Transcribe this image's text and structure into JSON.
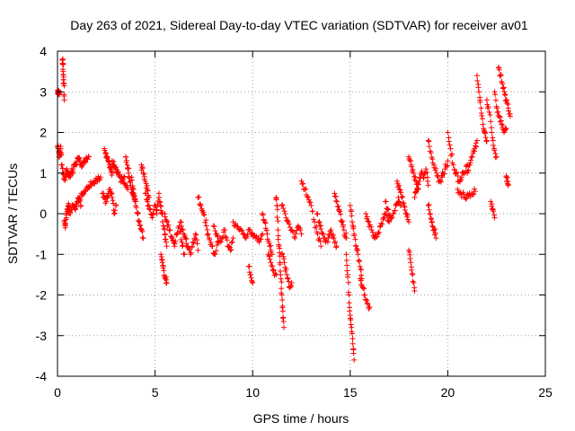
{
  "chart_data": {
    "type": "scatter",
    "title": "Day 263 of 2021, Sidereal Day-to-day VTEC variation (SDTVAR) for receiver av01",
    "xlabel": "GPS time / hours",
    "ylabel": "SDTVAR / TECUs",
    "xlim": [
      0,
      25
    ],
    "ylim": [
      -4,
      4
    ],
    "xticks": [
      0,
      5,
      10,
      15,
      20,
      25
    ],
    "yticks": [
      -4,
      -3,
      -2,
      -1,
      0,
      1,
      2,
      3,
      4
    ],
    "xtick_labels": [
      "0",
      "5",
      "10",
      "15",
      "20",
      "25"
    ],
    "ytick_labels": [
      "-4",
      "-3",
      "-2",
      "-1",
      "0",
      "1",
      "2",
      "3",
      "4"
    ],
    "grid": true,
    "marker": "+",
    "color": "#ff0000",
    "series": [
      {
        "name": "SDTVAR",
        "segments": [
          {
            "x0": 0.0,
            "x1": 0.1,
            "y": [
              3.0,
              3.0,
              2.98,
              3.0
            ]
          },
          {
            "x0": 0.0,
            "x1": 0.2,
            "y": [
              1.65,
              1.6,
              1.5,
              1.4,
              1.55,
              1.6,
              1.45
            ]
          },
          {
            "x0": 0.25,
            "x1": 0.35,
            "y": [
              3.8,
              3.7,
              3.5,
              3.3,
              3.2,
              2.8
            ]
          },
          {
            "x0": 0.2,
            "x1": 0.8,
            "y": [
              1.2,
              1.0,
              0.85,
              0.9,
              1.1,
              1.0,
              0.9,
              0.95,
              1.05,
              1.0
            ]
          },
          {
            "x0": 0.35,
            "x1": 0.6,
            "y": [
              -0.2,
              -0.3,
              -0.1,
              0.1,
              0.2,
              0.15
            ]
          },
          {
            "x0": 0.8,
            "x1": 1.6,
            "y": [
              1.1,
              1.2,
              1.3,
              1.35,
              1.2,
              1.25,
              1.3,
              1.35,
              1.4
            ]
          },
          {
            "x0": 0.6,
            "x1": 1.2,
            "y": [
              0.0,
              0.1,
              0.2,
              0.1,
              0.3,
              0.35,
              0.2
            ]
          },
          {
            "x0": 1.0,
            "x1": 2.2,
            "y": [
              0.3,
              0.4,
              0.5,
              0.55,
              0.6,
              0.7,
              0.75,
              0.8,
              0.85,
              0.9
            ]
          },
          {
            "x0": 2.4,
            "x1": 2.8,
            "y": [
              1.6,
              1.5,
              1.4,
              1.3,
              1.2,
              1.1,
              1.0
            ]
          },
          {
            "x0": 2.3,
            "x1": 3.0,
            "y": [
              0.5,
              0.4,
              0.3,
              0.5,
              0.6,
              0.4,
              0.0,
              0.2
            ]
          },
          {
            "x0": 2.8,
            "x1": 3.6,
            "y": [
              1.3,
              1.2,
              1.1,
              1.0,
              0.9,
              0.8,
              0.9,
              0.7,
              0.6
            ]
          },
          {
            "x0": 3.5,
            "x1": 4.0,
            "y": [
              1.4,
              1.2,
              1.0,
              0.8,
              0.6,
              0.5,
              0.4,
              0.3
            ]
          },
          {
            "x0": 3.8,
            "x1": 4.4,
            "y": [
              0.9,
              0.6,
              0.3,
              0.0,
              -0.2,
              -0.4,
              -0.6
            ]
          },
          {
            "x0": 4.3,
            "x1": 4.7,
            "y": [
              1.2,
              1.0,
              0.8,
              0.6,
              0.4
            ]
          },
          {
            "x0": 4.5,
            "x1": 5.2,
            "y": [
              0.5,
              0.3,
              0.1,
              -0.1,
              0.2,
              0.0,
              0.4
            ]
          },
          {
            "x0": 5.2,
            "x1": 5.6,
            "y": [
              0.5,
              0.2,
              0.0,
              -0.3,
              -0.5,
              -0.8
            ]
          },
          {
            "x0": 5.3,
            "x1": 5.6,
            "y": [
              -1.0,
              -1.2,
              -1.4,
              -1.6,
              -1.7
            ]
          },
          {
            "x0": 5.5,
            "x1": 6.5,
            "y": [
              0.0,
              -0.2,
              -0.4,
              -0.6,
              -0.8,
              -0.5,
              -0.3,
              -0.7,
              -1.0
            ]
          },
          {
            "x0": 6.3,
            "x1": 7.2,
            "y": [
              -0.2,
              -0.4,
              -0.6,
              -0.8,
              -1.0,
              -0.7,
              -0.5,
              -0.9
            ]
          },
          {
            "x0": 7.2,
            "x1": 8.2,
            "y": [
              0.4,
              0.2,
              0.0,
              -0.3,
              -0.6,
              -0.8,
              -1.0,
              -0.7
            ]
          },
          {
            "x0": 8.0,
            "x1": 9.0,
            "y": [
              -0.3,
              -0.5,
              -0.7,
              -0.6,
              -0.4,
              -0.8,
              -0.9,
              -0.6
            ]
          },
          {
            "x0": 9.0,
            "x1": 10.5,
            "y": [
              -0.2,
              -0.3,
              -0.4,
              -0.5,
              -0.6,
              -0.4,
              -0.5,
              -0.6,
              -0.7,
              -0.5
            ]
          },
          {
            "x0": 9.8,
            "x1": 10.0,
            "y": [
              -1.3,
              -1.5,
              -1.7
            ]
          },
          {
            "x0": 10.5,
            "x1": 11.0,
            "y": [
              0.0,
              -0.2,
              -0.5,
              -0.8,
              -1.0
            ]
          },
          {
            "x0": 10.8,
            "x1": 11.2,
            "y": [
              -1.0,
              -1.2,
              -1.4,
              -1.5
            ]
          },
          {
            "x0": 11.2,
            "x1": 11.6,
            "y": [
              0.4,
              0.2,
              -0.4,
              -0.8,
              -1.2,
              -1.6,
              -2.0,
              -2.4,
              -2.8
            ]
          },
          {
            "x0": 11.5,
            "x1": 12.0,
            "y": [
              -1.0,
              -1.2,
              -1.5,
              -1.8,
              -1.7
            ]
          },
          {
            "x0": 11.5,
            "x1": 12.5,
            "y": [
              0.2,
              0.0,
              -0.2,
              -0.4,
              -0.6,
              -0.3,
              -0.5
            ]
          },
          {
            "x0": 12.5,
            "x1": 13.5,
            "y": [
              0.8,
              0.6,
              0.4,
              0.2,
              -0.2,
              -0.5,
              -0.8
            ]
          },
          {
            "x0": 13.3,
            "x1": 14.3,
            "y": [
              0.0,
              -0.3,
              -0.5,
              -0.7,
              -0.6,
              -0.4,
              -0.6,
              -0.8
            ]
          },
          {
            "x0": 14.2,
            "x1": 14.8,
            "y": [
              0.5,
              0.3,
              0.1,
              -0.2,
              -0.4,
              -0.6
            ]
          },
          {
            "x0": 14.8,
            "x1": 15.2,
            "y": [
              -1.0,
              -1.5,
              -2.0,
              -2.5,
              -2.8,
              -3.2,
              -3.6
            ]
          },
          {
            "x0": 15.0,
            "x1": 15.6,
            "y": [
              0.2,
              -0.2,
              -0.5,
              -0.8,
              -1.0,
              -1.3,
              -1.6
            ]
          },
          {
            "x0": 15.5,
            "x1": 16.0,
            "y": [
              -1.6,
              -1.8,
              -2.0,
              -2.2,
              -2.3
            ]
          },
          {
            "x0": 15.8,
            "x1": 17.0,
            "y": [
              0.0,
              -0.2,
              -0.4,
              -0.6,
              -0.5,
              -0.3,
              -0.1,
              0.0,
              -0.2
            ]
          },
          {
            "x0": 16.8,
            "x1": 17.6,
            "y": [
              0.3,
              0.1,
              -0.1,
              0.0,
              0.2,
              0.4,
              0.2
            ]
          },
          {
            "x0": 17.4,
            "x1": 18.0,
            "y": [
              0.8,
              0.6,
              0.4,
              0.2,
              0.0,
              -0.2
            ]
          },
          {
            "x0": 18.0,
            "x1": 18.3,
            "y": [
              -0.9,
              -1.2,
              -1.5,
              -1.9
            ]
          },
          {
            "x0": 18.0,
            "x1": 18.5,
            "y": [
              1.4,
              1.2,
              1.0,
              0.8,
              0.6
            ]
          },
          {
            "x0": 18.3,
            "x1": 19.0,
            "y": [
              0.4,
              0.6,
              0.8,
              1.0,
              0.9,
              1.1,
              0.7
            ]
          },
          {
            "x0": 19.0,
            "x1": 19.4,
            "y": [
              0.2,
              0.0,
              -0.2,
              -0.4,
              -0.6
            ]
          },
          {
            "x0": 19.0,
            "x1": 20.0,
            "y": [
              1.8,
              1.5,
              1.2,
              1.0,
              0.8,
              0.9,
              1.1,
              1.3
            ]
          },
          {
            "x0": 20.0,
            "x1": 21.0,
            "y": [
              2.0,
              1.6,
              1.2,
              1.0,
              0.8,
              0.9,
              1.0,
              1.2
            ]
          },
          {
            "x0": 20.5,
            "x1": 21.4,
            "y": [
              0.6,
              0.5,
              0.4,
              0.45,
              0.5,
              0.55
            ]
          },
          {
            "x0": 21.0,
            "x1": 21.5,
            "y": [
              1.0,
              1.2,
              1.4,
              1.6,
              1.8
            ]
          },
          {
            "x0": 21.5,
            "x1": 22.0,
            "y": [
              3.4,
              3.0,
              2.6,
              2.2,
              2.0,
              1.8
            ]
          },
          {
            "x0": 22.0,
            "x1": 22.5,
            "y": [
              2.8,
              2.5,
              2.0,
              1.6,
              1.4
            ]
          },
          {
            "x0": 22.2,
            "x1": 22.4,
            "y": [
              0.3,
              0.1,
              -0.1
            ]
          },
          {
            "x0": 22.4,
            "x1": 23.0,
            "y": [
              3.0,
              2.6,
              2.4,
              2.2,
              2.0,
              2.1
            ]
          },
          {
            "x0": 22.6,
            "x1": 23.2,
            "y": [
              3.6,
              3.4,
              3.2,
              3.0,
              2.8,
              2.6,
              2.4
            ]
          },
          {
            "x0": 23.0,
            "x1": 23.1,
            "y": [
              0.9,
              0.8,
              0.7
            ]
          }
        ]
      }
    ]
  }
}
